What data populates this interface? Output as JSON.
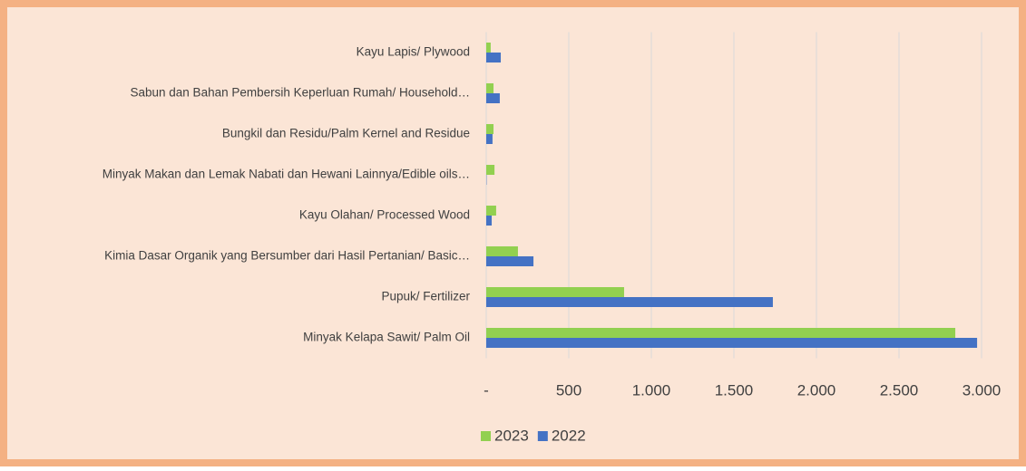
{
  "chart_data": {
    "type": "barh",
    "categories": [
      "Kayu Lapis/ Plywood",
      "Sabun dan Bahan Pembersih Keperluan Rumah/ Household…",
      "Bungkil dan Residu/Palm Kernel and Residue",
      "Minyak Makan dan Lemak Nabati dan Hewani Lainnya/Edible oils…",
      "Kayu Olahan/ Processed Wood",
      "Kimia Dasar Organik yang Bersumber dari Hasil Pertanian/ Basic…",
      "Pupuk/ Fertilizer",
      "Minyak Kelapa Sawit/ Palm Oil"
    ],
    "series": [
      {
        "name": "2023",
        "color": "#92d050",
        "values": [
          27,
          44,
          44,
          50,
          60,
          192,
          835,
          2841
        ]
      },
      {
        "name": "2022",
        "color": "#4472c4",
        "values": [
          88,
          82,
          38,
          2,
          33,
          286,
          1736,
          2973
        ]
      }
    ],
    "xlim": [
      0,
      3000
    ],
    "xticks": [
      {
        "value": 0,
        "label": "-"
      },
      500,
      {
        "value": 1000,
        "label": "1.000"
      },
      {
        "value": 1500,
        "label": "1.500"
      },
      {
        "value": 2000,
        "label": "2.000"
      },
      {
        "value": 2500,
        "label": "2.500"
      },
      {
        "value": 3000,
        "label": "3.000"
      }
    ],
    "grid": true,
    "legend": "bottom"
  }
}
